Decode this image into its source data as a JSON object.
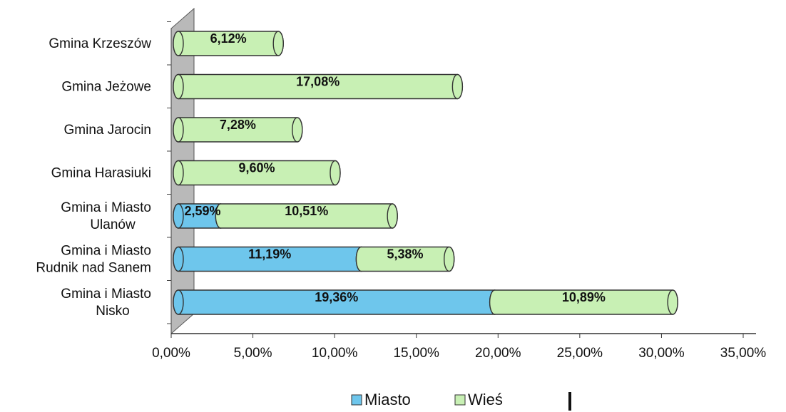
{
  "chart_data": {
    "type": "bar",
    "orientation": "horizontal",
    "stacked": true,
    "categories": [
      [
        "Gmina i Miasto",
        "Nisko"
      ],
      [
        "Gmina i Miasto",
        "Rudnik nad Sanem"
      ],
      [
        "Gmina i Miasto",
        "Ulanów"
      ],
      [
        "Gmina Harasiuki"
      ],
      [
        "Gmina Jarocin"
      ],
      [
        "Gmina Jeżowe"
      ],
      [
        "Gmina Krzeszów"
      ]
    ],
    "series": [
      {
        "name": "Miasto",
        "color": "#6ec6ec",
        "values": [
          19.36,
          11.19,
          2.59,
          0,
          0,
          0,
          0
        ],
        "labels": [
          "19,36%",
          "11,19%",
          "2,59%",
          "",
          "",
          "",
          ""
        ]
      },
      {
        "name": "Wieś",
        "color": "#c8f0b4",
        "values": [
          10.89,
          5.38,
          10.51,
          9.6,
          7.28,
          17.08,
          6.12
        ],
        "labels": [
          "10,89%",
          "5,38%",
          "10,51%",
          "9,60%",
          "7,28%",
          "17,08%",
          "6,12%"
        ]
      }
    ],
    "xlim": [
      0,
      35
    ],
    "xticks": [
      "0,00%",
      "5,00%",
      "10,00%",
      "15,00%",
      "20,00%",
      "25,00%",
      "30,00%",
      "35,00%"
    ],
    "legend_position": "bottom",
    "grid": false
  }
}
